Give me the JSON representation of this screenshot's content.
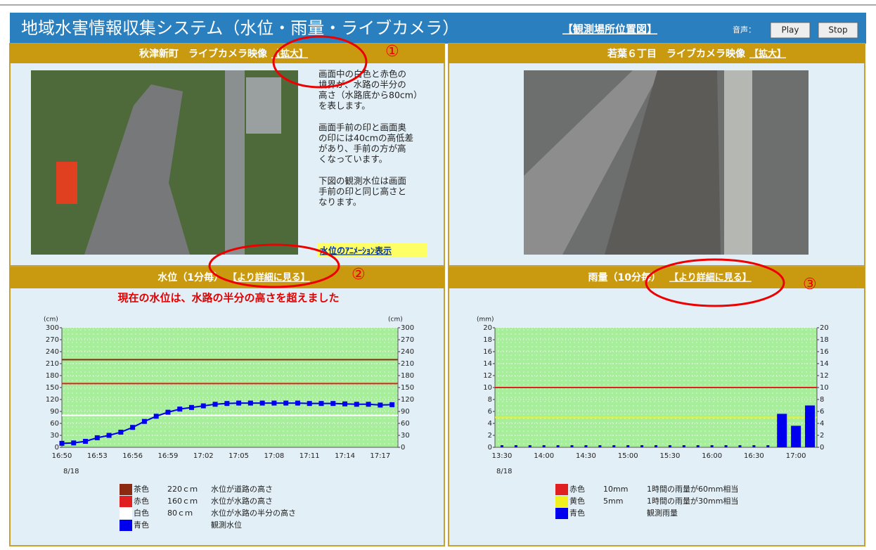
{
  "header": {
    "title": "地域水害情報収集システム（水位・雨量・ライブカメラ）",
    "map_link": "【観測場所位置図】",
    "audio_label": "音声：",
    "buttons": [
      "Play",
      "Stop"
    ]
  },
  "camera_panels": [
    {
      "title": "秋津新町　ライブカメラ映像",
      "zoom_link": "【拡大】",
      "description": [
        [
          "画面中の白色と赤色の",
          "境界が、水路の半分の",
          "高さ（水路底から80cm）",
          "を表します。"
        ],
        [
          "画面手前の印と画面奥",
          "の印には40cmの高低差",
          "があり、手前の方が高",
          "くなっています。"
        ],
        [
          "下図の観測水位は画面",
          "手前の印と同じ高さと",
          "なります。"
        ]
      ],
      "animation_link": "水位のｱﾆﾒｰｼｮﾝ表示"
    },
    {
      "title": "若葉６丁目　ライブカメラ映像",
      "zoom_link": "【拡大】"
    }
  ],
  "annotations": [
    "①",
    "②",
    "③"
  ],
  "chart_data": [
    {
      "type": "line",
      "title": "水位（1分毎）",
      "detail_link": "【より詳細に見る】",
      "subtitle": "現在の水位は、水路の半分の高さを超えました",
      "y_unit": "(cm)",
      "y2_unit": "(cm)",
      "date": "8/18",
      "categories": [
        "16:50",
        null,
        null,
        "16:53",
        null,
        null,
        "16:56",
        null,
        null,
        "16:59",
        null,
        null,
        "17:02",
        null,
        null,
        "17:05",
        null,
        null,
        "17:08",
        null,
        null,
        "17:11",
        null,
        null,
        "17:14",
        null,
        null,
        "17:17",
        null
      ],
      "series": [
        {
          "name": "青色",
          "color": "#0000ee",
          "legend_desc": "観測水位",
          "values": [
            10,
            11,
            15,
            24,
            30,
            38,
            50,
            65,
            78,
            88,
            96,
            100,
            104,
            108,
            110,
            111,
            111,
            111,
            111,
            111,
            111,
            110,
            110,
            110,
            109,
            108,
            108,
            106,
            107
          ]
        }
      ],
      "thresholds": [
        {
          "value": 220,
          "color": "#8b2a10",
          "name": "茶色",
          "label": "220ｃｍ",
          "desc": "水位が道路の高さ"
        },
        {
          "value": 160,
          "color": "#e02020",
          "name": "赤色",
          "label": "160ｃｍ",
          "desc": "水位が水路の高さ"
        },
        {
          "value": 80,
          "color": "#ffffff",
          "name": "白色",
          "label": "80ｃｍ",
          "desc": "水位が水路の半分の高さ"
        }
      ],
      "ylim": [
        0,
        300
      ],
      "yticks": [
        0,
        30,
        60,
        90,
        120,
        150,
        180,
        210,
        240,
        270,
        300
      ],
      "y2lim": [
        0,
        300
      ],
      "y2ticks": [
        0,
        30,
        60,
        90,
        120,
        150,
        180,
        210,
        240,
        270,
        300
      ],
      "grid": true
    },
    {
      "type": "bar",
      "title": "雨量（10分毎）",
      "detail_link": "【より詳細に見る】",
      "y_unit": "(mm)",
      "date": "8/18",
      "categories": [
        "13:30",
        null,
        null,
        "14:00",
        null,
        null,
        "14:30",
        null,
        null,
        "15:00",
        null,
        null,
        "15:30",
        null,
        null,
        "16:00",
        null,
        null,
        "16:30",
        null,
        null,
        "17:00",
        null
      ],
      "series": [
        {
          "name": "青色",
          "color": "#0000ee",
          "legend_desc": "観測雨量",
          "values": [
            0,
            0,
            0,
            0,
            0,
            0,
            0,
            0,
            0,
            0,
            0,
            0,
            0,
            0,
            0,
            0,
            0,
            0,
            0,
            0,
            5.6,
            3.6,
            7.0
          ]
        }
      ],
      "thresholds": [
        {
          "value": 10,
          "color": "#e02020",
          "name": "赤色",
          "label": "10mm",
          "desc": "1時間の雨量が60mm相当"
        },
        {
          "value": 5,
          "color": "#f0f020",
          "name": "黄色",
          "label": "5mm",
          "desc": "1時間の雨量が30mm相当"
        }
      ],
      "ylim": [
        0,
        20
      ],
      "yticks": [
        0,
        2,
        4,
        6,
        8,
        10,
        12,
        14,
        16,
        18,
        20
      ],
      "y2lim": [
        0,
        20
      ],
      "y2ticks": [
        0,
        2,
        4,
        6,
        8,
        10,
        12,
        14,
        16,
        18,
        20
      ],
      "grid": true
    }
  ]
}
